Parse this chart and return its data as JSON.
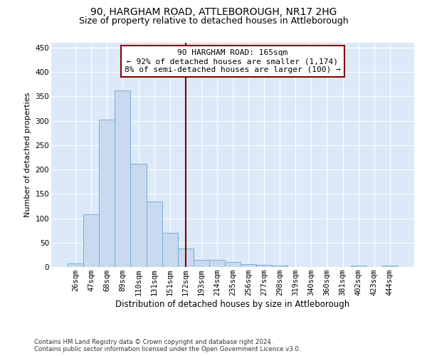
{
  "title1": "90, HARGHAM ROAD, ATTLEBOROUGH, NR17 2HG",
  "title2": "Size of property relative to detached houses in Attleborough",
  "xlabel": "Distribution of detached houses by size in Attleborough",
  "ylabel": "Number of detached properties",
  "categories": [
    "26sqm",
    "47sqm",
    "68sqm",
    "89sqm",
    "110sqm",
    "131sqm",
    "151sqm",
    "172sqm",
    "193sqm",
    "214sqm",
    "235sqm",
    "256sqm",
    "277sqm",
    "298sqm",
    "319sqm",
    "340sqm",
    "360sqm",
    "381sqm",
    "402sqm",
    "423sqm",
    "444sqm"
  ],
  "values": [
    8,
    108,
    302,
    362,
    212,
    135,
    70,
    38,
    15,
    15,
    10,
    6,
    5,
    3,
    0,
    0,
    0,
    0,
    3,
    0,
    3
  ],
  "bar_color": "#c8d9f0",
  "bar_edge_color": "#7aadd4",
  "vline_x": 7,
  "vline_color": "#8b0000",
  "annotation_text": "90 HARGHAM ROAD: 165sqm\n← 92% of detached houses are smaller (1,174)\n8% of semi-detached houses are larger (100) →",
  "annotation_box_color": "#ffffff",
  "annotation_box_edge": "#8b0000",
  "ylim": [
    0,
    460
  ],
  "yticks": [
    0,
    50,
    100,
    150,
    200,
    250,
    300,
    350,
    400,
    450
  ],
  "background_color": "#dce9f8",
  "footer_text": "Contains HM Land Registry data © Crown copyright and database right 2024.\nContains public sector information licensed under the Open Government Licence v3.0.",
  "title1_fontsize": 10,
  "title2_fontsize": 9,
  "xlabel_fontsize": 8.5,
  "ylabel_fontsize": 8,
  "tick_fontsize": 7.5,
  "annotation_fontsize": 8
}
